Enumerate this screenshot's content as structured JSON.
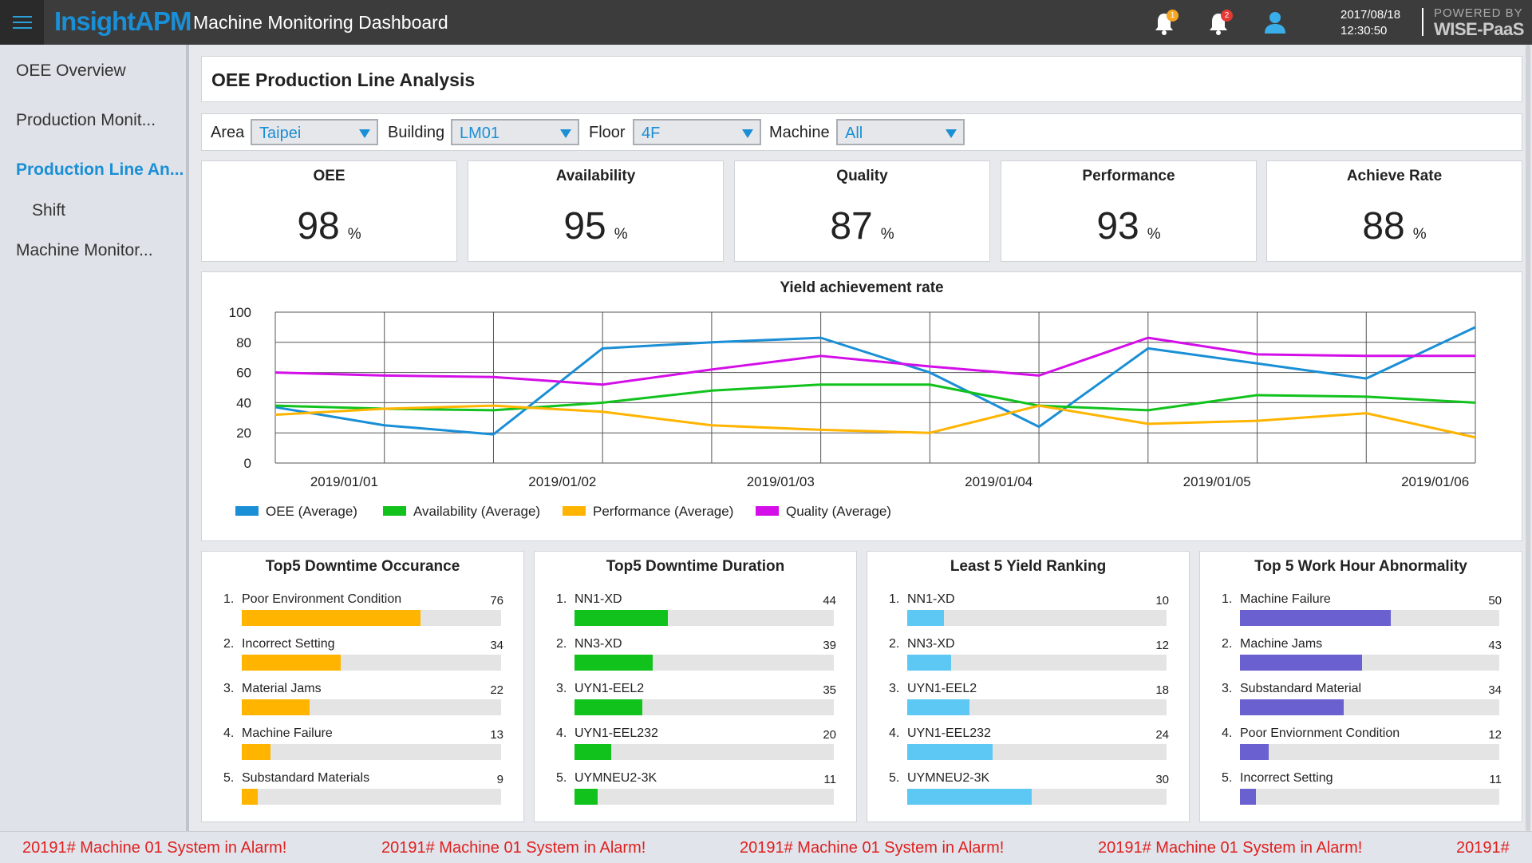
{
  "header": {
    "brand": "InsightAPM",
    "title": "Machine Monitoring Dashboard",
    "notifications": {
      "warning_count": "1",
      "alarm_count": "2"
    },
    "date": "2017/08/18",
    "time": "12:30:50",
    "powered_by": "POWERED BY",
    "platform": "WISE-PaaS"
  },
  "sidebar": {
    "items": [
      {
        "label": "OEE Overview"
      },
      {
        "label": "Production Monit..."
      },
      {
        "label": "Production Line An..."
      },
      {
        "label": "Shift"
      },
      {
        "label": "Machine Monitor..."
      }
    ]
  },
  "page_title": "OEE Production Line Analysis",
  "filters": {
    "area": {
      "label": "Area",
      "value": "Taipei"
    },
    "building": {
      "label": "Building",
      "value": "LM01"
    },
    "floor": {
      "label": "Floor",
      "value": "4F"
    },
    "machine": {
      "label": "Machine",
      "value": "All"
    }
  },
  "kpis": [
    {
      "title": "OEE",
      "value": "98",
      "unit": "%"
    },
    {
      "title": "Availability",
      "value": "95",
      "unit": "%"
    },
    {
      "title": "Quality",
      "value": "87",
      "unit": "%"
    },
    {
      "title": "Performance",
      "value": "93",
      "unit": "%"
    },
    {
      "title": "Achieve Rate",
      "value": "88",
      "unit": "%"
    }
  ],
  "chart_data": {
    "type": "line",
    "title": "Yield achievement rate",
    "xlabel": "",
    "ylabel": "",
    "ylim": [
      0,
      100
    ],
    "yticks": [
      0,
      20,
      40,
      60,
      80,
      100
    ],
    "xticks": [
      "2019/01/01",
      "2019/01/02",
      "2019/01/03",
      "2019/01/04",
      "2019/01/05",
      "2019/01/06"
    ],
    "x": [
      0,
      1,
      2,
      3,
      4,
      5,
      6,
      7,
      8,
      9,
      10,
      11
    ],
    "grid": true,
    "legend_position": "bottom-left",
    "series": [
      {
        "name": "OEE (Average)",
        "color": "#1a8fd6",
        "values": [
          37,
          25,
          19,
          76,
          80,
          83,
          60,
          24,
          76,
          66,
          56,
          90
        ]
      },
      {
        "name": "Availability (Average)",
        "color": "#11c21d",
        "values": [
          38,
          36,
          35,
          40,
          48,
          52,
          52,
          38,
          35,
          45,
          44,
          40
        ]
      },
      {
        "name": "Performance (Average)",
        "color": "#ffb400",
        "values": [
          32,
          36,
          38,
          34,
          25,
          22,
          20,
          38,
          26,
          28,
          33,
          17
        ]
      },
      {
        "name": "Quality (Average)",
        "color": "#d40ee8",
        "values": [
          60,
          58,
          57,
          52,
          62,
          71,
          64,
          58,
          83,
          72,
          71,
          71
        ]
      }
    ]
  },
  "rankings": [
    {
      "title": "Top5 Downtime Occurance",
      "color": "#ffb400",
      "items": [
        {
          "num": "1.",
          "label": "Poor Environment Condition",
          "value": "76",
          "fill": 0.69
        },
        {
          "num": "2.",
          "label": "Incorrect Setting",
          "value": "34",
          "fill": 0.38
        },
        {
          "num": "3.",
          "label": "Material Jams",
          "value": "22",
          "fill": 0.26
        },
        {
          "num": "4.",
          "label": "Machine Failure",
          "value": "13",
          "fill": 0.11
        },
        {
          "num": "5.",
          "label": "Substandard Materials",
          "value": "9",
          "fill": 0.06
        }
      ]
    },
    {
      "title": "Top5 Downtime Duration",
      "color": "#11c21d",
      "items": [
        {
          "num": "1.",
          "label": "NN1-XD",
          "value": "44",
          "fill": 0.36
        },
        {
          "num": "2.",
          "label": "NN3-XD",
          "value": "39",
          "fill": 0.3
        },
        {
          "num": "3.",
          "label": "UYN1-EEL2",
          "value": "35",
          "fill": 0.26
        },
        {
          "num": "4.",
          "label": "UYN1-EEL232",
          "value": "20",
          "fill": 0.14
        },
        {
          "num": "5.",
          "label": "UYMNEU2-3K",
          "value": "11",
          "fill": 0.09
        }
      ]
    },
    {
      "title": "Least 5 Yield Ranking",
      "color": "#5ec8f5",
      "items": [
        {
          "num": "1.",
          "label": "NN1-XD",
          "value": "10",
          "fill": 0.14
        },
        {
          "num": "2.",
          "label": "NN3-XD",
          "value": "12",
          "fill": 0.17
        },
        {
          "num": "3.",
          "label": "UYN1-EEL2",
          "value": "18",
          "fill": 0.24
        },
        {
          "num": "4.",
          "label": "UYN1-EEL232",
          "value": "24",
          "fill": 0.33
        },
        {
          "num": "5.",
          "label": "UYMNEU2-3K",
          "value": "30",
          "fill": 0.48
        }
      ]
    },
    {
      "title": "Top 5 Work Hour Abnormality",
      "color": "#6a60d0",
      "items": [
        {
          "num": "1.",
          "label": "Machine Failure",
          "value": "50",
          "fill": 0.58
        },
        {
          "num": "2.",
          "label": "Machine Jams",
          "value": "43",
          "fill": 0.47
        },
        {
          "num": "3.",
          "label": "Substandard Material",
          "value": "34",
          "fill": 0.4
        },
        {
          "num": "4.",
          "label": "Poor Enviornment Condition",
          "value": "12",
          "fill": 0.11
        },
        {
          "num": "5.",
          "label": "Incorrect Setting",
          "value": "11",
          "fill": 0.06
        }
      ]
    }
  ],
  "alarm_ticker": {
    "messages": [
      "20191# Machine 01 System in Alarm!",
      "20191# Machine 01 System in Alarm!",
      "20191# Machine 01 System in Alarm!",
      "20191# Machine 01 System in Alarm!",
      "20191#"
    ]
  }
}
